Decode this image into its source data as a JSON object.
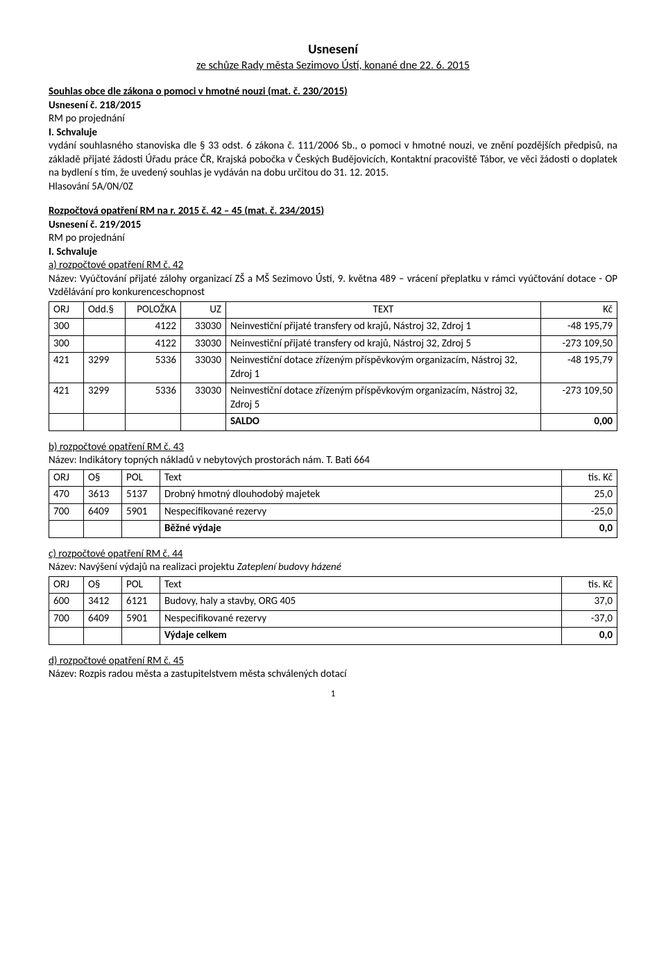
{
  "header": {
    "title": "Usnesení",
    "subtitle": "ze schůze Rady města Sezimovo Ústí, konané dne 22. 6. 2015"
  },
  "sec1": {
    "heading": "Souhlas obce dle zákona o pomoci v hmotné nouzi (mat. č. 230/2015)",
    "usneseni": "Usnesení č. 218/2015",
    "proj": "RM po projednání",
    "schv": "I. Schvaluje",
    "body": "vydání souhlasného stanoviska dle § 33 odst. 6 zákona č. 111/2006 Sb., o pomoci v hmotné nouzi, ve znění pozdějších předpisů, na základě přijaté žádosti Úřadu práce ČR, Krajská pobočka v Českých Budějovicích, Kontaktní pracoviště Tábor, ve věci žádosti o doplatek na bydlení s tím, že uvedený souhlas je vydáván na dobu určitou do 31. 12. 2015.",
    "hlas": "Hlasování 5A/0N/0Z"
  },
  "sec2": {
    "heading": "Rozpočtová opatření RM na r. 2015 č. 42 – 45 (mat. č. 234/2015)",
    "usneseni": "Usnesení č. 219/2015",
    "proj": "RM po projednání",
    "schv": "I. Schvaluje"
  },
  "opA": {
    "heading": "a) rozpočtové opatření RM č. 42",
    "nazev": "Název: Vyúčtování přijaté zálohy organizací ZŠ a MŠ Sezimovo Ústí, 9. května 489 – vrácení přeplatku v rámci vyúčtování dotace - OP Vzdělávání pro konkurenceschopnost",
    "head": {
      "orj": "ORJ",
      "odd": "Odd.§",
      "pol": "POLOŽKA",
      "uz": "UZ",
      "text": "TEXT",
      "kc": "Kč"
    },
    "rows": [
      {
        "orj": "300",
        "odd": "",
        "pol": "4122",
        "uz": "33030",
        "text": "Neinvestiční přijaté transfery od krajů, Nástroj 32, Zdroj 1",
        "kc": "-48 195,79"
      },
      {
        "orj": "300",
        "odd": "",
        "pol": "4122",
        "uz": "33030",
        "text": "Neinvestiční přijaté transfery od krajů, Nástroj 32, Zdroj 5",
        "kc": "-273 109,50"
      },
      {
        "orj": "421",
        "odd": "3299",
        "pol": "5336",
        "uz": "33030",
        "text": "Neinvestiční dotace zřízeným příspěvkovým organizacím, Nástroj 32, Zdroj 1",
        "kc": "-48 195,79"
      },
      {
        "orj": "421",
        "odd": "3299",
        "pol": "5336",
        "uz": "33030",
        "text": "Neinvestiční dotace zřízeným příspěvkovým organizacím, Nástroj 32, Zdroj 5",
        "kc": "-273 109,50"
      }
    ],
    "saldo": {
      "label": "SALDO",
      "val": "0,00"
    }
  },
  "opB": {
    "heading": "b) rozpočtové opatření RM č. 43",
    "nazev": "Název: Indikátory topných nákladů v nebytových prostorách nám. T. Bati 664",
    "head": {
      "orj": "ORJ",
      "os": "O§",
      "pol": "POL",
      "text": "Text",
      "kc": "tis. Kč"
    },
    "rows": [
      {
        "orj": "470",
        "os": "3613",
        "pol": "5137",
        "text": "Drobný hmotný dlouhodobý majetek",
        "kc": "25,0"
      },
      {
        "orj": "700",
        "os": "6409",
        "pol": "5901",
        "text": "Nespecifikované rezervy",
        "kc": "-25,0"
      }
    ],
    "sum": {
      "label": "Běžné výdaje",
      "val": "0,0"
    }
  },
  "opC": {
    "heading": "c) rozpočtové opatření RM č. 44",
    "nazevPrefix": "Název: Navýšení výdajů na realizaci projektu ",
    "nazevItalic": "Zateplení budovy házené",
    "head": {
      "orj": "ORJ",
      "os": "O§",
      "pol": "POL",
      "text": "Text",
      "kc": "tis. Kč"
    },
    "rows": [
      {
        "orj": "600",
        "os": "3412",
        "pol": "6121",
        "text": "Budovy, haly a stavby, ORG 405",
        "kc": "37,0"
      },
      {
        "orj": "700",
        "os": "6409",
        "pol": "5901",
        "text": "Nespecifikované rezervy",
        "kc": "-37,0"
      }
    ],
    "sum": {
      "label": "Výdaje celkem",
      "val": "0,0"
    }
  },
  "opD": {
    "heading": "d) rozpočtové opatření RM č. 45",
    "nazev": "Název: Rozpis radou města a zastupitelstvem města schválených dotací"
  },
  "pageNum": "1",
  "tableA": {
    "colWidths": [
      "50px",
      "60px",
      "80px",
      "65px",
      "auto",
      "110px"
    ]
  },
  "tableB": {
    "colWidths": [
      "50px",
      "55px",
      "55px",
      "auto",
      "80px"
    ]
  }
}
